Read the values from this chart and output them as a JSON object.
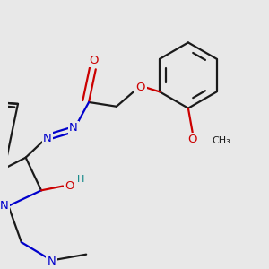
{
  "bg_color": "#e8e8e8",
  "bond_color": "#1a1a1a",
  "n_color": "#0000cc",
  "o_color": "#cc0000",
  "oh_color": "#008080",
  "lw": 1.6,
  "lw_thick": 1.8,
  "fs": 9.5,
  "fs_small": 8.0,
  "xlim": [
    0,
    300
  ],
  "ylim": [
    0,
    300
  ]
}
